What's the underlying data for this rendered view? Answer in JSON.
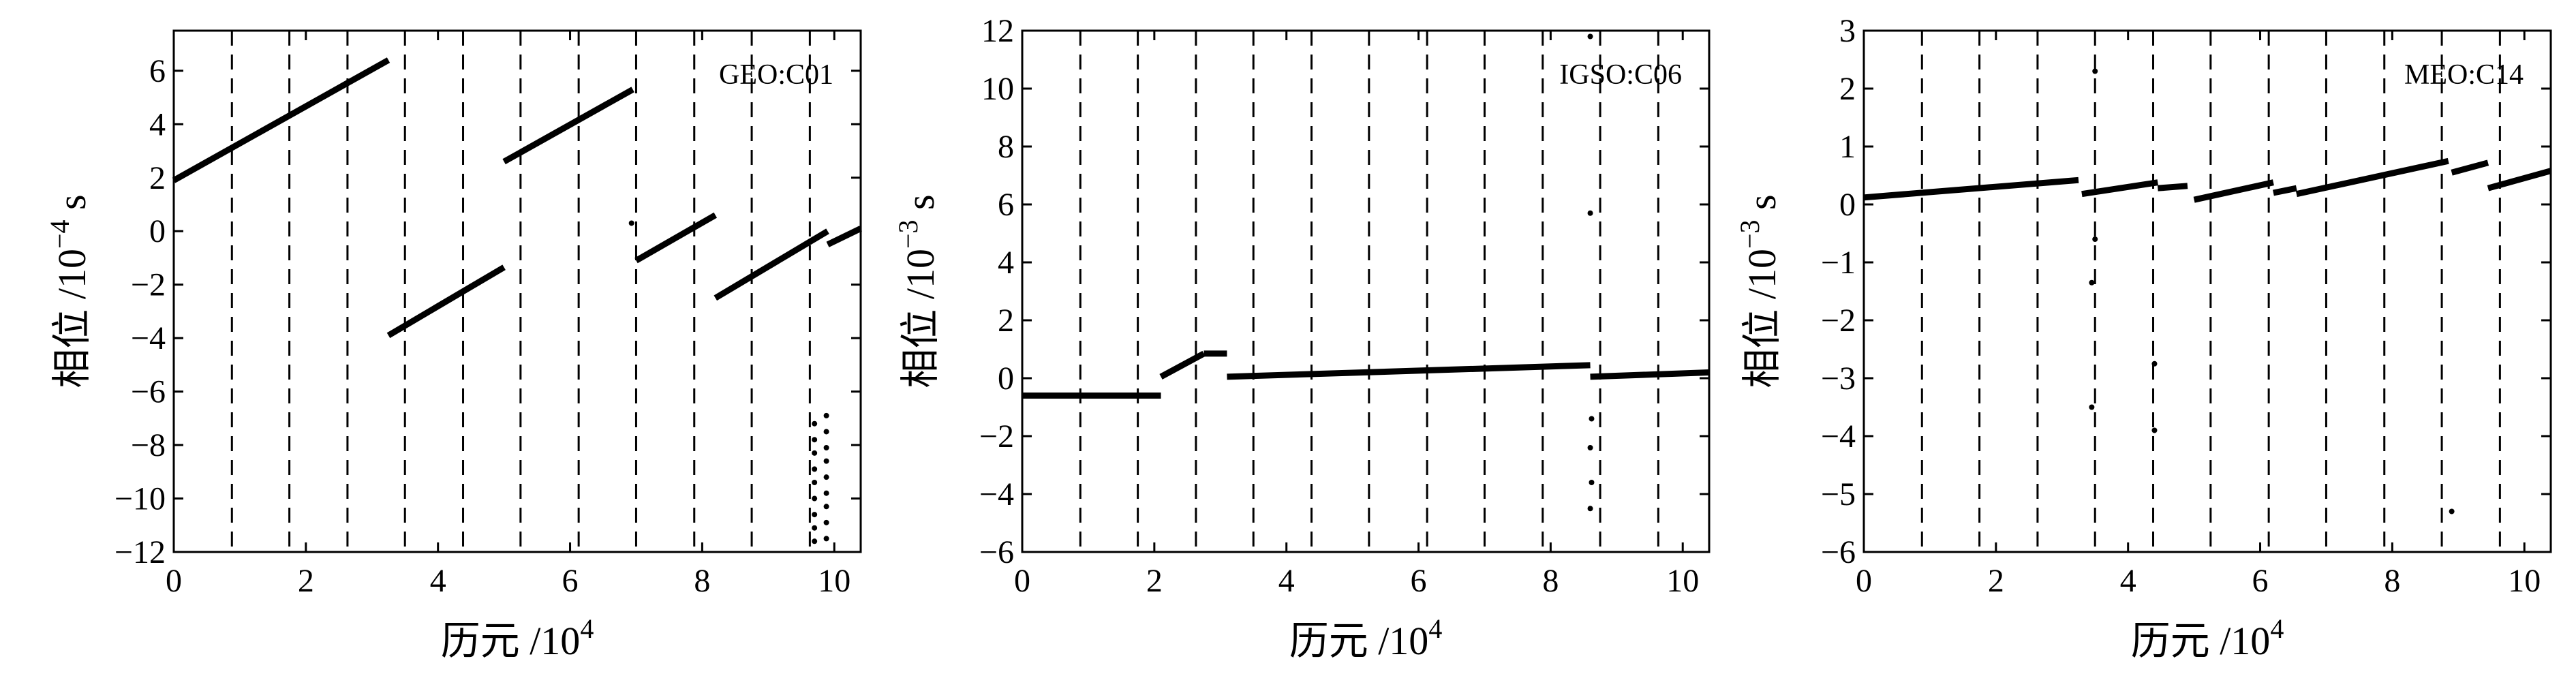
{
  "chart_data": [
    {
      "type": "scatter",
      "annotation": "GEO:C01",
      "xlabel": "历元 /10",
      "xlabel_exp": "4",
      "ylabel": "相位 /10",
      "ylabel_exp": "−4",
      "ylabel_unit": " s",
      "xlim": [
        0,
        10.4
      ],
      "ylim": [
        -12,
        7.5
      ],
      "xticks": [
        0,
        2,
        4,
        6,
        8,
        10
      ],
      "yticks": [
        -12,
        -10,
        -8,
        -6,
        -4,
        -2,
        0,
        2,
        4,
        6
      ],
      "vlines": [
        0.88,
        1.75,
        2.63,
        3.5,
        4.38,
        5.25,
        6.13,
        7.0,
        7.88,
        8.75,
        9.63
      ],
      "segments": [
        {
          "x0": 0.0,
          "y0": 1.9,
          "x1": 3.25,
          "y1": 6.4
        },
        {
          "x0": 3.25,
          "y0": -3.9,
          "x1": 5.0,
          "y1": -1.35
        },
        {
          "x0": 5.0,
          "y0": 2.6,
          "x1": 6.95,
          "y1": 5.3
        },
        {
          "x0": 7.0,
          "y0": -1.1,
          "x1": 8.2,
          "y1": 0.6
        },
        {
          "x0": 8.2,
          "y0": -2.5,
          "x1": 9.9,
          "y1": 0.0
        },
        {
          "x0": 9.9,
          "y0": -0.5,
          "x1": 10.4,
          "y1": 0.1
        }
      ],
      "points": [
        {
          "x": 6.93,
          "y": 0.3
        },
        {
          "x": 9.7,
          "y": -7.2
        },
        {
          "x": 9.7,
          "y": -7.8
        },
        {
          "x": 9.7,
          "y": -8.3
        },
        {
          "x": 9.7,
          "y": -8.9
        },
        {
          "x": 9.7,
          "y": -9.4
        },
        {
          "x": 9.7,
          "y": -10.0
        },
        {
          "x": 9.7,
          "y": -10.6
        },
        {
          "x": 9.7,
          "y": -11.1
        },
        {
          "x": 9.7,
          "y": -11.6
        },
        {
          "x": 9.88,
          "y": -6.9
        },
        {
          "x": 9.88,
          "y": -7.5
        },
        {
          "x": 9.88,
          "y": -8.1
        },
        {
          "x": 9.88,
          "y": -8.6
        },
        {
          "x": 9.88,
          "y": -9.2
        },
        {
          "x": 9.88,
          "y": -9.8
        },
        {
          "x": 9.88,
          "y": -10.3
        },
        {
          "x": 9.88,
          "y": -10.9
        },
        {
          "x": 9.88,
          "y": -11.5
        }
      ]
    },
    {
      "type": "scatter",
      "annotation": "IGSO:C06",
      "xlabel": "历元 /10",
      "xlabel_exp": "4",
      "ylabel": "相位 /10",
      "ylabel_exp": "−3",
      "ylabel_unit": " s",
      "xlim": [
        0,
        10.4
      ],
      "ylim": [
        -6,
        12
      ],
      "xticks": [
        0,
        2,
        4,
        6,
        8,
        10
      ],
      "yticks": [
        -6,
        -4,
        -2,
        0,
        2,
        4,
        6,
        8,
        10,
        12
      ],
      "vlines": [
        0.88,
        1.75,
        2.63,
        3.5,
        4.38,
        5.25,
        6.13,
        7.0,
        7.88,
        8.75,
        9.63
      ],
      "segments": [
        {
          "x0": 0.0,
          "y0": -0.6,
          "x1": 2.1,
          "y1": -0.6
        },
        {
          "x0": 2.1,
          "y0": 0.05,
          "x1": 2.75,
          "y1": 0.85
        },
        {
          "x0": 2.75,
          "y0": 0.85,
          "x1": 3.1,
          "y1": 0.85
        },
        {
          "x0": 3.1,
          "y0": 0.05,
          "x1": 8.6,
          "y1": 0.45
        },
        {
          "x0": 8.6,
          "y0": 0.05,
          "x1": 10.4,
          "y1": 0.2
        }
      ],
      "points": [
        {
          "x": 8.6,
          "y": 5.7
        },
        {
          "x": 8.6,
          "y": 11.8
        },
        {
          "x": 8.62,
          "y": -1.4
        },
        {
          "x": 8.6,
          "y": -2.4
        },
        {
          "x": 8.62,
          "y": -3.6
        },
        {
          "x": 8.6,
          "y": -4.5
        }
      ]
    },
    {
      "type": "scatter",
      "annotation": "MEO:C14",
      "xlabel": "历元 /10",
      "xlabel_exp": "4",
      "ylabel": "相位 /10",
      "ylabel_exp": "−3",
      "ylabel_unit": " s",
      "xlim": [
        0,
        10.4
      ],
      "ylim": [
        -6,
        3
      ],
      "xticks": [
        0,
        2,
        4,
        6,
        8,
        10
      ],
      "yticks": [
        -6,
        -5,
        -4,
        -3,
        -2,
        -1,
        0,
        1,
        2,
        3
      ],
      "vlines": [
        0.88,
        1.75,
        2.63,
        3.5,
        4.38,
        5.25,
        6.13,
        7.0,
        7.88,
        8.75,
        9.63
      ],
      "segments": [
        {
          "x0": 0.0,
          "y0": 0.12,
          "x1": 3.25,
          "y1": 0.42
        },
        {
          "x0": 3.3,
          "y0": 0.18,
          "x1": 4.45,
          "y1": 0.38
        },
        {
          "x0": 4.45,
          "y0": 0.28,
          "x1": 4.9,
          "y1": 0.32
        },
        {
          "x0": 5.0,
          "y0": 0.08,
          "x1": 6.2,
          "y1": 0.38
        },
        {
          "x0": 6.2,
          "y0": 0.2,
          "x1": 6.55,
          "y1": 0.28
        },
        {
          "x0": 6.55,
          "y0": 0.18,
          "x1": 8.85,
          "y1": 0.75
        },
        {
          "x0": 8.9,
          "y0": 0.55,
          "x1": 9.45,
          "y1": 0.72
        },
        {
          "x0": 9.45,
          "y0": 0.28,
          "x1": 10.4,
          "y1": 0.58
        }
      ],
      "points": [
        {
          "x": 3.5,
          "y": 2.3
        },
        {
          "x": 3.5,
          "y": -0.6
        },
        {
          "x": 3.45,
          "y": -1.35
        },
        {
          "x": 3.45,
          "y": -3.5
        },
        {
          "x": 4.4,
          "y": -2.75
        },
        {
          "x": 4.4,
          "y": -3.9
        },
        {
          "x": 8.9,
          "y": -5.3
        }
      ]
    }
  ]
}
